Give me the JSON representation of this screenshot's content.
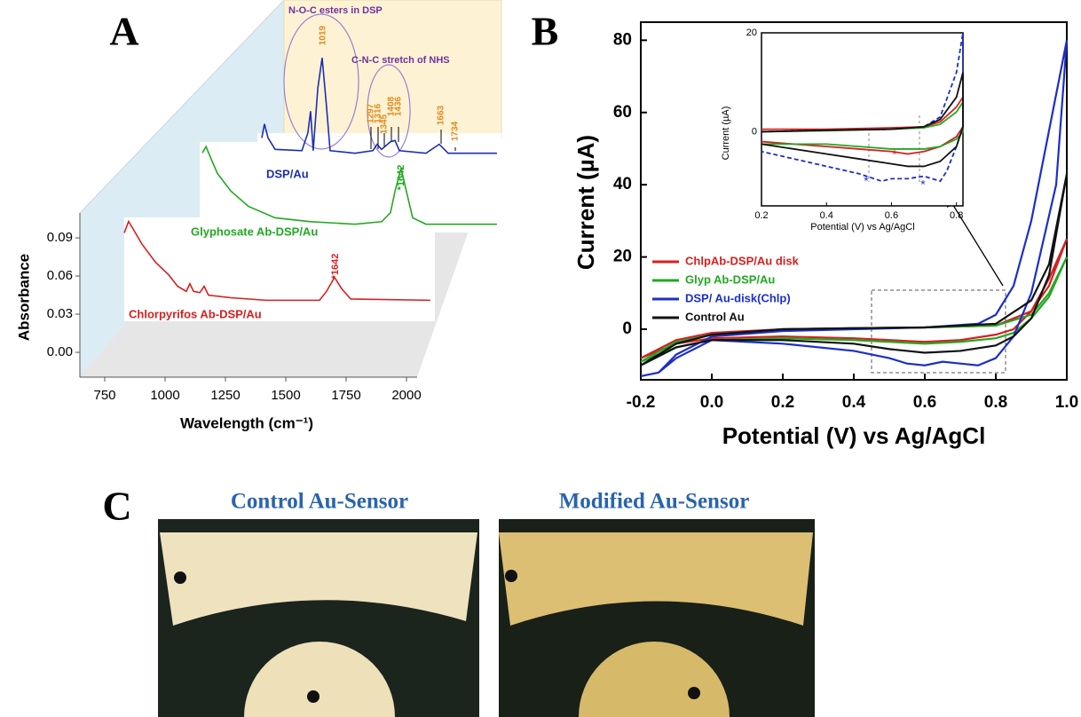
{
  "panel_labels": [
    "A",
    "B",
    "C"
  ],
  "photos": {
    "titles": [
      "Control Au-Sensor",
      "Modified Au-Sensor"
    ]
  },
  "chart_data": [
    {
      "type": "waterfall",
      "ylabel": "Absorbance",
      "xlabel": "Wavelength (cm⁻¹)",
      "xlim": [
        650,
        2050
      ],
      "xticks": [
        750,
        1000,
        1250,
        1500,
        1750,
        2000
      ],
      "ylim": [
        -0.02,
        0.11
      ],
      "yticks": [
        {
          "value": 0,
          "label": "0.00"
        },
        0.03,
        0.06,
        0.09
      ],
      "series": [
        {
          "name": "Chlorpyrifos Ab-DSP/Au",
          "color": "#d62020",
          "x": [
            772,
            790,
            809,
            846,
            901,
            956,
            993,
            1029,
            1044,
            1059,
            1085,
            1103,
            1121,
            1213,
            1360,
            1581,
            1610,
            1643,
            1673,
            1710,
            2040
          ],
          "values": [
            0.073,
            0.082,
            0.076,
            0.064,
            0.05,
            0.04,
            0.031,
            0.027,
            0.033,
            0.027,
            0.026,
            0.031,
            0.024,
            0.022,
            0.02,
            0.02,
            0.027,
            0.038,
            0.029,
            0.021,
            0.02
          ]
        },
        {
          "name": "Glyphosate Ab-DSP/Au",
          "color": "#22a822",
          "x": [
            820,
            835,
            857,
            882,
            938,
            1011,
            1121,
            1268,
            1452,
            1563,
            1599,
            1618,
            1643,
            1665,
            1691,
            1746,
            2040
          ],
          "values": [
            0.08,
            0.085,
            0.075,
            0.064,
            0.05,
            0.038,
            0.029,
            0.026,
            0.024,
            0.026,
            0.033,
            0.05,
            0.068,
            0.05,
            0.029,
            0.024,
            0.024
          ]
        },
        {
          "name": "DSP/Au",
          "color": "#1c2fb0",
          "x": [
            919,
            930,
            945,
            974,
            1085,
            1110,
            1121,
            1132,
            1151,
            1169,
            1187,
            1202,
            1305,
            1379,
            1397,
            1415,
            1452,
            1471,
            1489,
            1599,
            1654,
            1691,
            1893
          ],
          "values": [
            0.036,
            0.047,
            0.036,
            0.027,
            0.026,
            0.04,
            0.057,
            0.026,
            0.075,
            0.099,
            0.061,
            0.026,
            0.024,
            0.026,
            0.031,
            0.027,
            0.033,
            0.034,
            0.026,
            0.024,
            0.031,
            0.024,
            0.024
          ]
        }
      ],
      "annotations": [
        "N-O-C esters in DSP",
        "C-N-C stretch of NHS",
        "*1642",
        "*1642"
      ],
      "peak_labels": [
        1019,
        1297,
        1316,
        1345,
        1408,
        1436,
        1663,
        1734
      ]
    },
    {
      "type": "cv",
      "ylabel": "Current (µA)",
      "xlabel": "Potential (V) vs Ag/AgCl",
      "xlim": [
        -0.2,
        1.0
      ],
      "xticks": [
        -0.2,
        {
          "value": 0,
          "label": "0.0"
        },
        0.2,
        0.4,
        0.6,
        0.8,
        {
          "value": 1,
          "label": "1.0"
        }
      ],
      "ylim": [
        -14,
        85
      ],
      "yticks": [
        0,
        20,
        40,
        60,
        80
      ],
      "series": [
        {
          "name": "ChlpAb-DSP/Au disk",
          "color": "#d62020",
          "x": [
            -0.2,
            -0.1,
            0,
            0.2,
            0.4,
            0.6,
            0.8,
            0.9,
            0.95,
            1.0,
            0.95,
            0.9,
            0.85,
            0.8,
            0.7,
            0.6,
            0.5,
            0.4,
            0.2,
            0,
            -0.1,
            -0.2
          ],
          "values": [
            -8,
            -3,
            -1,
            0,
            0.3,
            0.5,
            1,
            5,
            12,
            25,
            14,
            5,
            0,
            -1.5,
            -3,
            -3.5,
            -3,
            -2.5,
            -2,
            -2.5,
            -4,
            -8
          ]
        },
        {
          "name": "Glyp Ab-DSP/Au",
          "color": "#22a822",
          "x": [
            -0.2,
            -0.1,
            0,
            0.2,
            0.4,
            0.6,
            0.8,
            0.9,
            0.95,
            1.0,
            0.95,
            0.9,
            0.85,
            0.8,
            0.7,
            0.6,
            0.5,
            0.4,
            0.2,
            0,
            -0.1,
            -0.2
          ],
          "values": [
            -9,
            -3.5,
            -1.5,
            0,
            0.3,
            0.5,
            1,
            4,
            10,
            20,
            9,
            3,
            -1,
            -2.5,
            -3.5,
            -4,
            -3.5,
            -3,
            -2.5,
            -3,
            -5,
            -9
          ]
        },
        {
          "name": "DSP/ Au-disk(Chlp)",
          "color": "#1c2fc8",
          "x": [
            -0.2,
            -0.15,
            -0.1,
            0,
            0.2,
            0.4,
            0.6,
            0.75,
            0.8,
            0.85,
            0.9,
            0.95,
            1.0,
            0.97,
            0.9,
            0.85,
            0.8,
            0.75,
            0.7,
            0.65,
            0.6,
            0.55,
            0.5,
            0.4,
            0.2,
            0,
            -0.1,
            -0.15,
            -0.2
          ],
          "values": [
            -13,
            -12,
            -7,
            -2,
            -0.5,
            0,
            0.5,
            1.5,
            4,
            12,
            30,
            55,
            80,
            40,
            10,
            -2,
            -8,
            -10,
            -9.5,
            -9,
            -10,
            -9.5,
            -8,
            -6,
            -4,
            -3,
            -8,
            -12,
            -13
          ]
        },
        {
          "name": "Control Au",
          "color": "#111111",
          "x": [
            -0.2,
            -0.1,
            0,
            0.2,
            0.4,
            0.6,
            0.8,
            0.9,
            0.95,
            1.0,
            0.95,
            0.9,
            0.85,
            0.8,
            0.7,
            0.6,
            0.5,
            0.4,
            0.2,
            0,
            -0.1,
            -0.2
          ],
          "values": [
            -10,
            -4,
            -1.5,
            0,
            0.3,
            0.5,
            1.5,
            8,
            18,
            43,
            15,
            3,
            -2,
            -4.5,
            -6,
            -6.5,
            -5.5,
            -4,
            -3,
            -3,
            -5,
            -10
          ]
        }
      ]
    },
    {
      "type": "cv-inset",
      "ylabel": "Current (µA)",
      "xlabel": "Potential (V) vs Ag/AgCl",
      "xlim": [
        0.2,
        0.82
      ],
      "xticks": [
        0.2,
        0.4,
        0.6,
        0.8
      ],
      "ylim": [
        -15,
        20
      ],
      "yticks": [
        0,
        20
      ],
      "series": [
        {
          "color": "#d62020",
          "x": [
            0.2,
            0.4,
            0.6,
            0.7,
            0.75,
            0.8,
            0.82,
            0.82,
            0.8,
            0.75,
            0.7,
            0.65,
            0.6,
            0.5,
            0.4,
            0.2
          ],
          "values": [
            0.5,
            0.5,
            0.8,
            1,
            2,
            5,
            7,
            1,
            -1,
            -3,
            -4,
            -4.5,
            -4,
            -3.5,
            -3,
            -2
          ]
        },
        {
          "color": "#22a822",
          "x": [
            0.2,
            0.4,
            0.6,
            0.7,
            0.75,
            0.8,
            0.82,
            0.82,
            0.8,
            0.75,
            0.7,
            0.6,
            0.5,
            0.4,
            0.2
          ],
          "values": [
            0,
            0.2,
            0.5,
            0.8,
            1.5,
            4,
            6,
            0,
            -1.5,
            -3,
            -3.5,
            -3.5,
            -3,
            -2.5,
            -2.5
          ]
        },
        {
          "color": "#1c2fc8",
          "dashed": true,
          "x": [
            0.2,
            0.4,
            0.6,
            0.7,
            0.75,
            0.8,
            0.82,
            0.82,
            0.8,
            0.77,
            0.75,
            0.7,
            0.65,
            0.6,
            0.57,
            0.5,
            0.4,
            0.2
          ],
          "values": [
            0,
            0.3,
            0.5,
            1,
            3,
            12,
            20,
            1,
            -3,
            -8,
            -10,
            -9,
            -9.5,
            -9.5,
            -10,
            -8.5,
            -7,
            -4
          ]
        },
        {
          "color": "#111111",
          "x": [
            0.2,
            0.4,
            0.6,
            0.7,
            0.75,
            0.8,
            0.82,
            0.82,
            0.8,
            0.75,
            0.7,
            0.65,
            0.6,
            0.5,
            0.4,
            0.2
          ],
          "values": [
            0,
            0.3,
            0.5,
            1,
            2.5,
            7,
            12,
            1,
            -3,
            -6,
            -7,
            -7,
            -6.5,
            -5.5,
            -4.5,
            -2.5
          ]
        }
      ]
    }
  ]
}
